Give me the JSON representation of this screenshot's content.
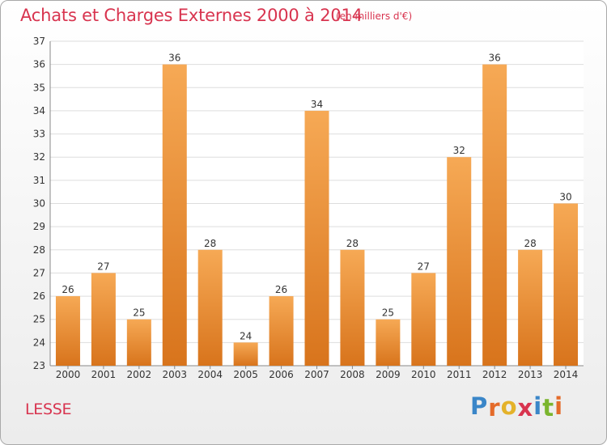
{
  "header": {
    "title": "Achats et Charges Externes 2000 à 2014",
    "unit": "(en milliers d'€)"
  },
  "footer": {
    "commune": "LESSE",
    "brand": "Proxiti",
    "brand_letters": [
      {
        "char": "P",
        "color": "#3a86c8"
      },
      {
        "char": "r",
        "color": "#e46b2a"
      },
      {
        "char": "o",
        "color": "#e4b22a"
      },
      {
        "char": "x",
        "color": "#d8344f"
      },
      {
        "char": "i",
        "color": "#3a86c8"
      },
      {
        "char": "t",
        "color": "#7bb52e"
      },
      {
        "char": "i",
        "color": "#e46b2a"
      }
    ]
  },
  "colors": {
    "bar_light": "#f6a955",
    "bar_dark": "#d8741c",
    "text": "#d8344f",
    "grid": "#dddddd"
  },
  "chart_data": {
    "type": "bar",
    "categories": [
      "2000",
      "2001",
      "2002",
      "2003",
      "2004",
      "2005",
      "2006",
      "2007",
      "2008",
      "2009",
      "2010",
      "2011",
      "2012",
      "2013",
      "2014"
    ],
    "values": [
      26,
      27,
      25,
      36,
      28,
      24,
      26,
      34,
      28,
      25,
      27,
      32,
      36,
      28,
      30
    ],
    "ylim": [
      23,
      37
    ],
    "yticks": [
      23,
      24,
      25,
      26,
      27,
      28,
      29,
      30,
      31,
      32,
      33,
      34,
      35,
      36,
      37
    ],
    "grid": true,
    "data_labels": true
  }
}
